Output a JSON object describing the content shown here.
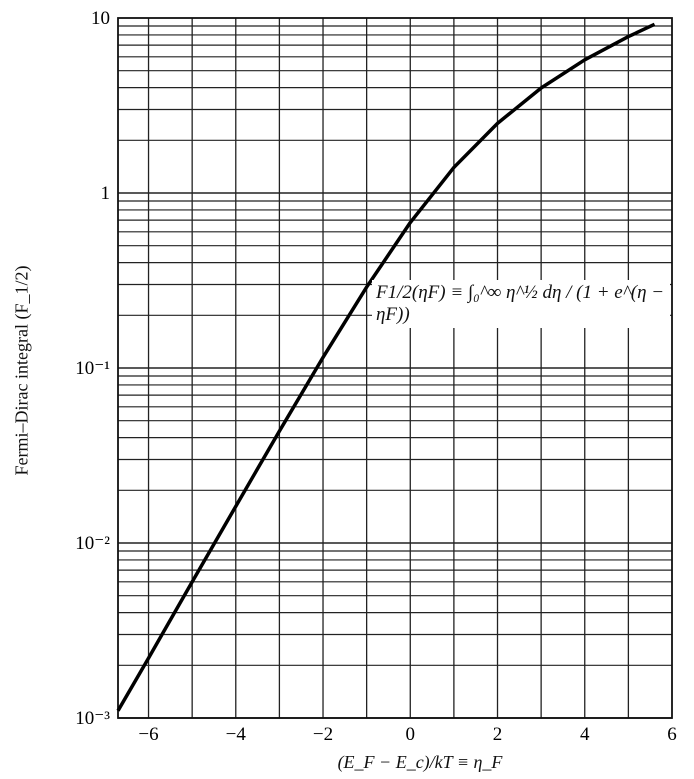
{
  "chart_data": {
    "type": "line",
    "title": "",
    "xlabel": "(E_F − E_c)/kT ≡ η_F",
    "ylabel": "Fermi–Dirac integral (F_1/2)",
    "xlim": [
      -6.7,
      6
    ],
    "ylim": [
      0.001,
      10
    ],
    "yscale": "log",
    "grid": true,
    "x_ticks": [
      -6,
      -4,
      -2,
      0,
      2,
      4,
      6
    ],
    "x_tick_labels": [
      "−6",
      "−4",
      "−2",
      "0",
      "2",
      "4",
      "6"
    ],
    "y_ticks": [
      10,
      1,
      0.1,
      0.01,
      0.001
    ],
    "y_tick_labels": [
      "10",
      "1",
      "10⁻¹",
      "10⁻²",
      "10⁻³"
    ],
    "annotation": "F1/2(ηF) ≡ ∫₀^∞ η^½ dη / (1 + e^(η − ηF))",
    "series": [
      {
        "name": "F1/2",
        "x": [
          -6.7,
          -6,
          -5,
          -4,
          -3,
          -2,
          -1,
          0,
          1,
          2,
          3,
          4,
          5,
          5.6
        ],
        "y": [
          0.0011,
          0.0022,
          0.006,
          0.0162,
          0.0436,
          0.115,
          0.29,
          0.678,
          1.4,
          2.5,
          3.98,
          5.77,
          7.83,
          9.2
        ]
      }
    ]
  }
}
